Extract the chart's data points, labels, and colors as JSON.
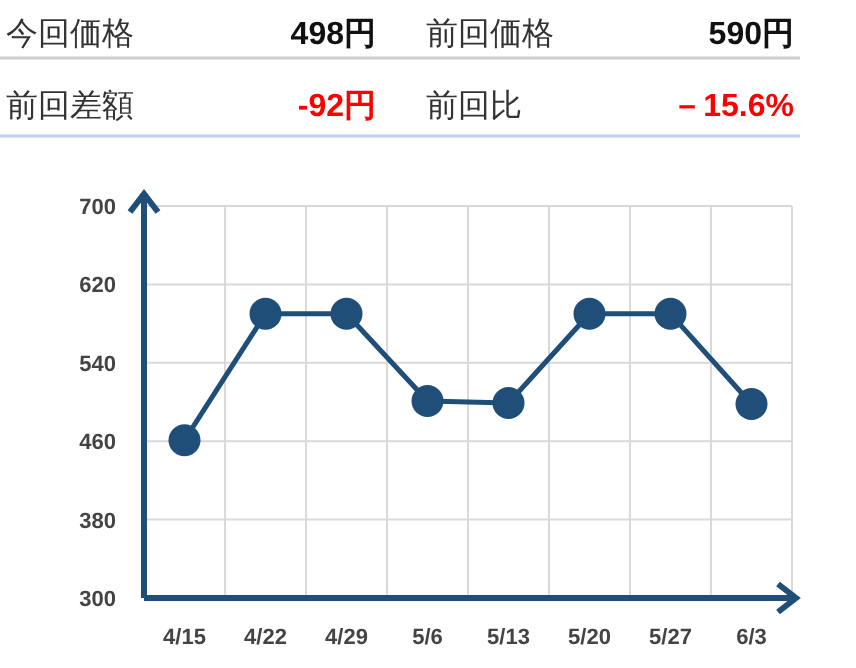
{
  "chart_data": [
    {
      "type": "other",
      "annotations": [
        "今回価格",
        "498円",
        "前回価格",
        "590円",
        "前回差額",
        "-92円",
        "前回比",
        "－15.6%"
      ]
    },
    {
      "type": "line",
      "categories": [
        "4/15",
        "4/22",
        "4/29",
        "5/6",
        "5/13",
        "5/20",
        "5/27",
        "6/3"
      ],
      "series": [
        {
          "color": "#1f4e79",
          "values": [
            461,
            590,
            590,
            501,
            499,
            590,
            590,
            498
          ]
        }
      ],
      "ylim": [
        300,
        700
      ],
      "yticks": [
        300,
        380,
        460,
        540,
        620,
        700
      ],
      "grid": true,
      "marker": "circle",
      "line_style": "solid"
    }
  ]
}
